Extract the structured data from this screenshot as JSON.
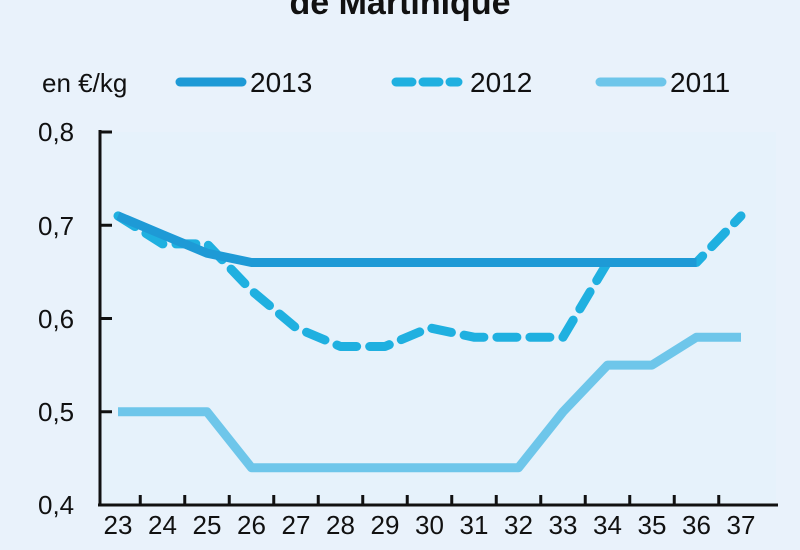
{
  "chart_data": {
    "type": "line",
    "title": "de Martinique",
    "unit_label": "en €/kg",
    "x": [
      23,
      24,
      25,
      26,
      27,
      28,
      29,
      30,
      31,
      32,
      33,
      34,
      35,
      36,
      37
    ],
    "y_ticks": [
      "0,8",
      "0,7",
      "0,6",
      "0,5",
      "0,4"
    ],
    "ylim": [
      0.4,
      0.8
    ],
    "legend_position": "top",
    "series": [
      {
        "name": "2013",
        "color": "#1e9ad6",
        "style": "solid",
        "values": [
          0.71,
          0.69,
          0.67,
          0.66,
          0.66,
          0.66,
          0.66,
          0.66,
          0.66,
          0.66,
          0.66,
          0.66,
          0.66,
          0.66,
          null
        ]
      },
      {
        "name": "2012",
        "color": "#1fb0e0",
        "style": "dashed",
        "values": [
          0.71,
          0.68,
          0.68,
          0.63,
          0.59,
          0.57,
          0.57,
          0.59,
          0.58,
          0.58,
          0.58,
          0.66,
          0.66,
          0.66,
          0.71
        ]
      },
      {
        "name": "2011",
        "color": "#6ec6ea",
        "style": "solid",
        "values": [
          0.5,
          0.5,
          0.5,
          0.44,
          0.44,
          0.44,
          0.44,
          0.44,
          0.44,
          0.44,
          0.5,
          0.55,
          0.55,
          0.58,
          0.58
        ]
      }
    ]
  }
}
